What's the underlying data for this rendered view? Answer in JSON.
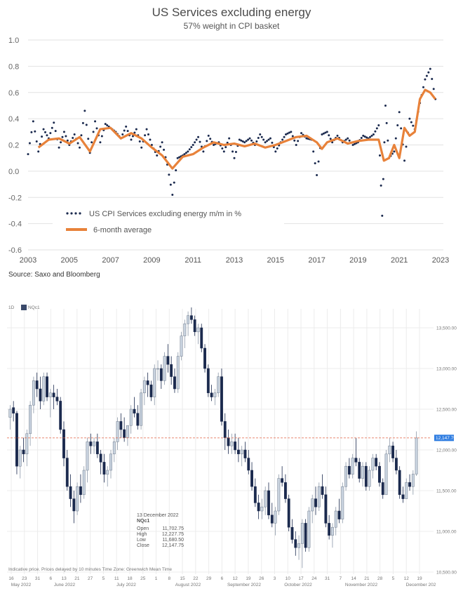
{
  "chart_data": [
    {
      "type": "line",
      "title": "US Services excluding energy",
      "subtitle": "57% weight in CPI basket",
      "source": "Source: Saxo and Bloomberg",
      "xlabel": "",
      "ylabel": "",
      "xlim": [
        2003,
        2023
      ],
      "ylim": [
        -0.6,
        1.0
      ],
      "yticks": [
        "1.0",
        "0.8",
        "0.6",
        "0.4",
        "0.2",
        "0.0",
        "-0.2",
        "-0.4",
        "-0.6"
      ],
      "xticks": [
        "2003",
        "2005",
        "2007",
        "2009",
        "2011",
        "2013",
        "2015",
        "2017",
        "2019",
        "2021",
        "2023"
      ],
      "grid": "horizontal",
      "legend_position": "bottom-left",
      "series": [
        {
          "name": "US CPI Services excluding energy m/m in %",
          "style": "dotted",
          "color": "#1b2a4e",
          "x": [
            2003.0,
            2003.25,
            2003.5,
            2003.75,
            2004.0,
            2004.25,
            2004.5,
            2004.75,
            2005.0,
            2005.25,
            2005.5,
            2005.75,
            2006.0,
            2006.25,
            2006.5,
            2006.75,
            2007.0,
            2007.25,
            2007.5,
            2007.75,
            2008.0,
            2008.25,
            2008.5,
            2008.75,
            2009.0,
            2009.25,
            2009.5,
            2009.75,
            2010.0,
            2010.25,
            2010.5,
            2010.75,
            2011.0,
            2011.25,
            2011.5,
            2011.75,
            2012.0,
            2012.25,
            2012.5,
            2012.75,
            2013.0,
            2013.25,
            2013.5,
            2013.75,
            2014.0,
            2014.25,
            2014.5,
            2014.75,
            2015.0,
            2015.25,
            2015.5,
            2015.75,
            2016.0,
            2016.25,
            2016.5,
            2016.75,
            2017.0,
            2017.25,
            2017.5,
            2017.75,
            2018.0,
            2018.25,
            2018.5,
            2018.75,
            2019.0,
            2019.25,
            2019.5,
            2019.75,
            2020.0,
            2020.17,
            2020.33,
            2020.5,
            2020.75,
            2021.0,
            2021.25,
            2021.5,
            2021.75,
            2022.0,
            2022.25,
            2022.5,
            2022.75
          ],
          "values": [
            0.13,
            0.38,
            0.15,
            0.32,
            0.25,
            0.37,
            0.18,
            0.3,
            0.2,
            0.28,
            0.18,
            0.46,
            0.14,
            0.38,
            0.22,
            0.36,
            0.33,
            0.3,
            0.25,
            0.34,
            0.24,
            0.32,
            0.18,
            0.32,
            0.2,
            0.12,
            0.22,
            0.05,
            -0.18,
            0.1,
            0.12,
            0.15,
            0.2,
            0.26,
            0.15,
            0.27,
            0.2,
            0.22,
            0.15,
            0.25,
            0.1,
            0.24,
            0.22,
            0.25,
            0.2,
            0.28,
            0.22,
            0.25,
            0.15,
            0.22,
            0.28,
            0.3,
            0.2,
            0.29,
            0.25,
            0.24,
            -0.03,
            0.28,
            0.3,
            0.22,
            0.27,
            0.22,
            0.25,
            0.2,
            0.22,
            0.27,
            0.25,
            0.28,
            0.35,
            -0.34,
            0.5,
            0.1,
            0.15,
            0.45,
            0.08,
            0.4,
            0.32,
            0.52,
            0.7,
            0.78,
            0.55
          ]
        },
        {
          "name": "6-month average",
          "style": "solid",
          "color": "#e8823a",
          "x": [
            2003.5,
            2004.0,
            2004.5,
            2005.0,
            2005.5,
            2006.0,
            2006.5,
            2007.0,
            2007.5,
            2008.0,
            2008.5,
            2009.0,
            2009.5,
            2010.0,
            2010.5,
            2011.0,
            2011.5,
            2012.0,
            2012.5,
            2013.0,
            2013.5,
            2014.0,
            2014.5,
            2015.0,
            2015.5,
            2016.0,
            2016.5,
            2017.0,
            2017.25,
            2017.5,
            2018.0,
            2018.5,
            2019.0,
            2019.5,
            2020.0,
            2020.25,
            2020.5,
            2020.75,
            2021.0,
            2021.25,
            2021.5,
            2021.75,
            2022.0,
            2022.25,
            2022.5,
            2022.75
          ],
          "values": [
            0.18,
            0.24,
            0.25,
            0.21,
            0.26,
            0.15,
            0.32,
            0.33,
            0.25,
            0.29,
            0.25,
            0.18,
            0.12,
            0.02,
            0.11,
            0.13,
            0.18,
            0.22,
            0.2,
            0.21,
            0.19,
            0.21,
            0.18,
            0.2,
            0.23,
            0.26,
            0.27,
            0.22,
            0.17,
            0.22,
            0.25,
            0.21,
            0.23,
            0.24,
            0.24,
            0.08,
            0.1,
            0.2,
            0.1,
            0.33,
            0.27,
            0.3,
            0.55,
            0.62,
            0.6,
            0.55
          ]
        }
      ]
    },
    {
      "type": "candlestick",
      "symbol": "NQc1",
      "interval": "1D",
      "ylim": [
        10500,
        13800
      ],
      "yticks": [
        "13,500.00",
        "13,000.00",
        "12,500.00",
        "12,000.00",
        "11,500.00",
        "11,000.00",
        "10,500.00"
      ],
      "last_price_label": "12,147.75",
      "last_price": 12147.75,
      "date_ticks": [
        "16",
        "23",
        "31",
        "6",
        "13",
        "21",
        "27",
        "5",
        "11",
        "18",
        "25",
        "1",
        "8",
        "15",
        "22",
        "29",
        "6",
        "12",
        "19",
        "26",
        "3",
        "10",
        "17",
        "24",
        "31",
        "7",
        "14",
        "21",
        "28",
        "5",
        "12",
        "19"
      ],
      "month_labels": [
        "May 2022",
        "June 2022",
        "July 2022",
        "August 2022",
        "September 2022",
        "October 2022",
        "November 2022",
        "December 202"
      ],
      "footer_note": "Indicative price. Prices delayed by 10 minutes    Time Zone: Greenwich Mean Time",
      "tooltip": {
        "date": "13 December 2022",
        "symbol": "NQc1",
        "rows": [
          {
            "label": "Open",
            "value": "11,702.75"
          },
          {
            "label": "High",
            "value": "12,227.75"
          },
          {
            "label": "Low",
            "value": "11,680.50"
          },
          {
            "label": "Close",
            "value": "12,147.75"
          }
        ]
      },
      "candles": [
        [
          12400,
          12550,
          12250,
          12500
        ],
        [
          12520,
          12600,
          12350,
          12450
        ],
        [
          12450,
          12480,
          11700,
          11800
        ],
        [
          11800,
          12050,
          11650,
          12000
        ],
        [
          12000,
          12150,
          11850,
          11950
        ],
        [
          11950,
          12250,
          11800,
          12200
        ],
        [
          12200,
          12600,
          12050,
          12550
        ],
        [
          12550,
          12900,
          12450,
          12850
        ],
        [
          12850,
          12950,
          12650,
          12750
        ],
        [
          12750,
          12900,
          12500,
          12600
        ],
        [
          12600,
          12950,
          12550,
          12900
        ],
        [
          12900,
          12950,
          12600,
          12650
        ],
        [
          12650,
          12750,
          12400,
          12700
        ],
        [
          12700,
          12800,
          12500,
          12650
        ],
        [
          12650,
          12750,
          12550,
          12600
        ],
        [
          12600,
          12650,
          12200,
          12250
        ],
        [
          12250,
          12350,
          11800,
          11900
        ],
        [
          11900,
          12000,
          11500,
          11550
        ],
        [
          11550,
          11700,
          11300,
          11400
        ],
        [
          11400,
          11500,
          11100,
          11250
        ],
        [
          11250,
          11600,
          11200,
          11550
        ],
        [
          11550,
          11700,
          11350,
          11450
        ],
        [
          11450,
          11800,
          11400,
          11750
        ],
        [
          11750,
          12150,
          11600,
          12100
        ],
        [
          12100,
          12200,
          11950,
          12050
        ],
        [
          12050,
          12150,
          11950,
          12100
        ],
        [
          12100,
          12200,
          11900,
          11950
        ],
        [
          11950,
          12000,
          11700,
          11850
        ],
        [
          11850,
          11950,
          11600,
          11700
        ],
        [
          11700,
          11800,
          11550,
          11750
        ],
        [
          11750,
          12000,
          11650,
          11950
        ],
        [
          11950,
          12150,
          11850,
          12100
        ],
        [
          12100,
          12400,
          12000,
          12350
        ],
        [
          12350,
          12450,
          12150,
          12250
        ],
        [
          12250,
          12400,
          12100,
          12150
        ],
        [
          12150,
          12300,
          12050,
          12300
        ],
        [
          12300,
          12550,
          12200,
          12500
        ],
        [
          12500,
          12650,
          12400,
          12450
        ],
        [
          12450,
          12550,
          12250,
          12300
        ],
        [
          12300,
          12750,
          12250,
          12700
        ],
        [
          12700,
          12900,
          12550,
          12850
        ],
        [
          12850,
          12950,
          12650,
          12800
        ],
        [
          12800,
          12850,
          12600,
          12650
        ],
        [
          12650,
          13050,
          12550,
          13000
        ],
        [
          13000,
          13100,
          12850,
          13000
        ],
        [
          13000,
          13050,
          12750,
          12850
        ],
        [
          12850,
          13200,
          12800,
          13150
        ],
        [
          13150,
          13300,
          12950,
          13050
        ],
        [
          13050,
          13150,
          12800,
          12900
        ],
        [
          12900,
          13000,
          12700,
          12750
        ],
        [
          12750,
          13200,
          12700,
          13150
        ],
        [
          13150,
          13450,
          13100,
          13400
        ],
        [
          13400,
          13600,
          13250,
          13550
        ],
        [
          13550,
          13700,
          13400,
          13650
        ],
        [
          13650,
          13750,
          13550,
          13600
        ],
        [
          13600,
          13650,
          13400,
          13450
        ],
        [
          13450,
          13550,
          13300,
          13500
        ],
        [
          13500,
          13550,
          13200,
          13250
        ],
        [
          13250,
          13300,
          12950,
          13000
        ],
        [
          13000,
          13050,
          12650,
          12700
        ],
        [
          12700,
          12800,
          12600,
          12650
        ],
        [
          12650,
          12750,
          12550,
          12700
        ],
        [
          12700,
          12950,
          12650,
          12900
        ],
        [
          12900,
          13000,
          12300,
          12350
        ],
        [
          12350,
          12450,
          12000,
          12150
        ],
        [
          12150,
          12250,
          11950,
          12050
        ],
        [
          12050,
          12200,
          11950,
          12100
        ],
        [
          12100,
          12200,
          11950,
          12000
        ],
        [
          12000,
          12150,
          11850,
          11950
        ],
        [
          11950,
          12050,
          11800,
          12000
        ],
        [
          12000,
          12100,
          11850,
          11900
        ],
        [
          11900,
          12000,
          11700,
          11750
        ],
        [
          11750,
          11850,
          11500,
          11550
        ],
        [
          11550,
          11650,
          11300,
          11350
        ],
        [
          11350,
          11450,
          11150,
          11250
        ],
        [
          11250,
          11400,
          11150,
          11300
        ],
        [
          11300,
          11550,
          11200,
          11500
        ],
        [
          11500,
          11600,
          11150,
          11200
        ],
        [
          11200,
          11350,
          11050,
          11100
        ],
        [
          11100,
          11300,
          10950,
          11250
        ],
        [
          11250,
          11700,
          11200,
          11650
        ],
        [
          11650,
          11800,
          11550,
          11600
        ],
        [
          11600,
          11700,
          11350,
          11400
        ],
        [
          11400,
          11450,
          11000,
          11050
        ],
        [
          11050,
          11150,
          10850,
          10900
        ],
        [
          10900,
          11000,
          10700,
          10800
        ],
        [
          10800,
          10950,
          10650,
          10850
        ],
        [
          10850,
          11150,
          10550,
          11100
        ],
        [
          11100,
          11150,
          10750,
          10800
        ],
        [
          10800,
          11300,
          10750,
          11250
        ],
        [
          11250,
          11450,
          11100,
          11400
        ],
        [
          11400,
          11550,
          11200,
          11300
        ],
        [
          11300,
          11600,
          11250,
          11550
        ],
        [
          11550,
          11700,
          11400,
          11450
        ],
        [
          11450,
          11550,
          11050,
          11100
        ],
        [
          11100,
          11200,
          10900,
          10950
        ],
        [
          10950,
          11100,
          10800,
          11050
        ],
        [
          11050,
          11300,
          10950,
          11250
        ],
        [
          11250,
          11400,
          11100,
          11150
        ],
        [
          11150,
          11600,
          11100,
          11550
        ],
        [
          11550,
          11850,
          11500,
          11800
        ],
        [
          11800,
          11900,
          11650,
          11700
        ],
        [
          11700,
          11950,
          11650,
          11900
        ],
        [
          11900,
          12150,
          11800,
          11850
        ],
        [
          11850,
          11900,
          11600,
          11650
        ],
        [
          11650,
          11850,
          11550,
          11800
        ],
        [
          11800,
          11850,
          11500,
          11550
        ],
        [
          11550,
          11800,
          11500,
          11750
        ],
        [
          11750,
          11950,
          11650,
          11900
        ],
        [
          11900,
          11950,
          11750,
          11800
        ],
        [
          11800,
          11850,
          11550,
          11600
        ],
        [
          11600,
          11650,
          11400,
          11450
        ],
        [
          11450,
          12000,
          11450,
          11950
        ],
        [
          11950,
          12150,
          11850,
          12050
        ],
        [
          12050,
          12100,
          11850,
          11900
        ],
        [
          11900,
          12000,
          11700,
          11750
        ],
        [
          11750,
          11800,
          11400,
          11450
        ],
        [
          11450,
          11550,
          11350,
          11400
        ],
        [
          11400,
          11650,
          11400,
          11600
        ],
        [
          11600,
          11700,
          11500,
          11550
        ],
        [
          11550,
          11750,
          11450,
          11702.75
        ],
        [
          11702.75,
          12227.75,
          11680.5,
          12147.75
        ]
      ],
      "colors": {
        "up_fill": "#c9d3df",
        "down_fill": "#1b2a4e",
        "last_price_line": "#e06040",
        "last_price_badge": "#2f7de1"
      }
    }
  ]
}
